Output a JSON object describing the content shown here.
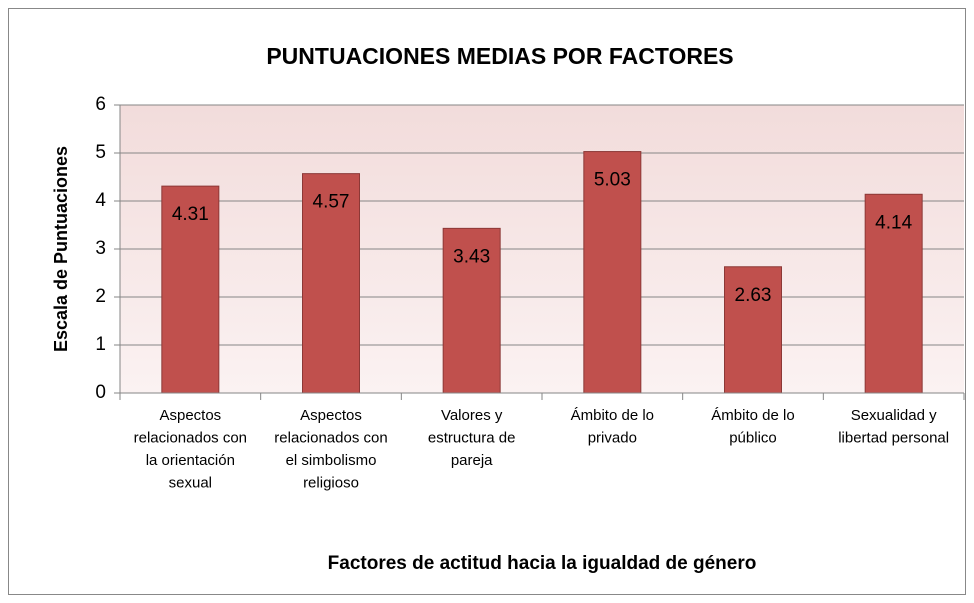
{
  "chart_data": {
    "type": "bar",
    "title": "PUNTUACIONES MEDIAS POR FACTORES",
    "x_label": "Factores de actitud hacia la igualdad de género",
    "y_label": "Escala de Puntuaciones",
    "categories": [
      "Aspectos relacionados con la orientación sexual",
      "Aspectos relacionados con el simbolismo religioso",
      "Valores y estructura de pareja",
      "Ámbito de lo privado",
      "Ámbito de lo público",
      "Sexualidad y libertad personal"
    ],
    "values": [
      4.31,
      4.57,
      3.43,
      5.03,
      2.63,
      4.14
    ],
    "color": "#c0504d",
    "ylim": [
      0,
      6
    ],
    "yticks": [
      0,
      1,
      2,
      3,
      4,
      5,
      6
    ],
    "grid": true
  }
}
